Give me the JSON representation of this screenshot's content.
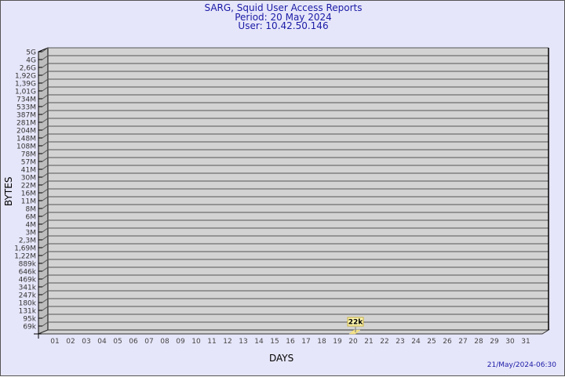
{
  "title": "SARG, Squid User Access Reports",
  "period": "Period: 20 May 2024",
  "user": "User: 10.42.50.146",
  "timestamp": "21/May/2024-06:30",
  "colors": {
    "background": "#e6e6fa",
    "plot": "#d3d3d3",
    "wall": "#bdbdbd",
    "bar": "#f5e38a",
    "title": "#1a1aa6"
  },
  "chart_data": {
    "type": "bar",
    "xlabel": "DAYS",
    "ylabel": "BYTES",
    "y_scale": "log",
    "y_ticks": [
      "5G",
      "4G",
      "2,6G",
      "1,92G",
      "1,39G",
      "1,01G",
      "734M",
      "533M",
      "387M",
      "281M",
      "204M",
      "148M",
      "108M",
      "78M",
      "57M",
      "41M",
      "30M",
      "22M",
      "16M",
      "11M",
      "8M",
      "6M",
      "4M",
      "3M",
      "2,3M",
      "1,69M",
      "1,22M",
      "889k",
      "646k",
      "469k",
      "341k",
      "247k",
      "180k",
      "131k",
      "95k",
      "69k"
    ],
    "categories": [
      "01",
      "02",
      "03",
      "04",
      "05",
      "06",
      "07",
      "08",
      "09",
      "10",
      "11",
      "12",
      "13",
      "14",
      "15",
      "16",
      "17",
      "18",
      "19",
      "20",
      "21",
      "22",
      "23",
      "24",
      "25",
      "26",
      "27",
      "28",
      "29",
      "30",
      "31"
    ],
    "values": [
      null,
      null,
      null,
      null,
      null,
      null,
      null,
      null,
      null,
      null,
      null,
      null,
      null,
      null,
      null,
      null,
      null,
      null,
      null,
      22000,
      null,
      null,
      null,
      null,
      null,
      null,
      null,
      null,
      null,
      null,
      null
    ],
    "data_labels": {
      "20": "22k"
    },
    "grid": true
  }
}
